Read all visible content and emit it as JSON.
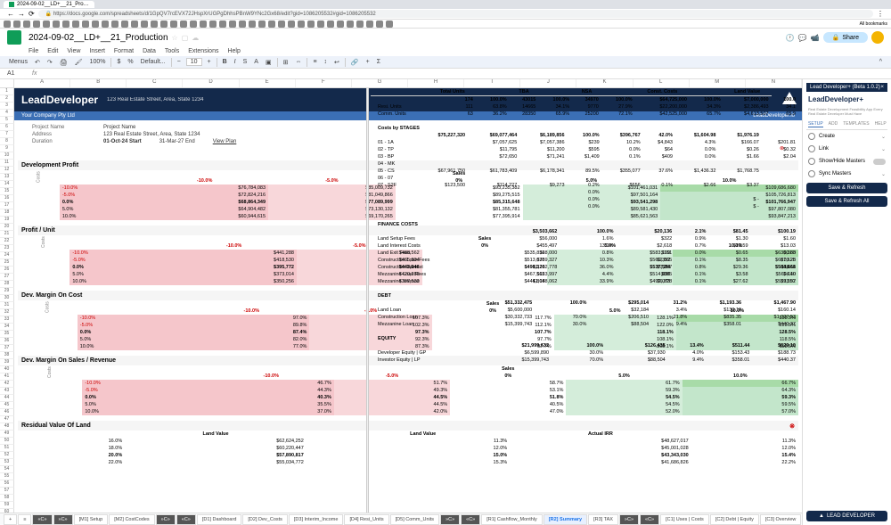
{
  "browser": {
    "tab_title": "2024-09-02__LD+__21_Pro…",
    "url": "https://docs.google.com/spreadsheets/d/1GpQV7rcEVX72JHspXrUGPgDhhsPBnW9YNc2Gx68/edit?gid=1086205532#gid=1086205532",
    "bookmarks_label": "All bookmarks"
  },
  "doc": {
    "title": "2024-09-02__LD+__21_Production",
    "menus": [
      "File",
      "Edit",
      "View",
      "Insert",
      "Format",
      "Data",
      "Tools",
      "Extensions",
      "Help"
    ],
    "share": "Share"
  },
  "toolbar": {
    "menus_btn": "Menus",
    "zoom": "100%",
    "currency": "$",
    "pct": "%",
    "font": "Default...",
    "font_size": "10"
  },
  "formula": {
    "cell": "A1"
  },
  "columns": [
    "A",
    "B",
    "C",
    "D",
    "E",
    "F",
    "G",
    "H",
    "I",
    "J",
    "K",
    "L",
    "M",
    "N"
  ],
  "ld": {
    "brand_lead": "Lead",
    "brand_dev": "Developer",
    "address": "123 Real Estate Street, Area, State 1234",
    "company": "Your Company Pty Ltd",
    "link": "LeadDeveloper.io"
  },
  "info": {
    "rows": [
      {
        "label": "Project Name",
        "val": "Project Name"
      },
      {
        "label": "Address",
        "val": "123 Real Estate Street, Area, State 1234"
      },
      {
        "label": "Duration",
        "val": "01-Oct-24 Start",
        "val2": "31-Mar-27 End",
        "val3": "View Plan"
      }
    ]
  },
  "dev_profit": {
    "title": "Development Profit",
    "sales_hdr": "Sales",
    "cols": [
      "",
      "-10.0%",
      "-5.0%",
      "0%",
      "5.0%",
      "10.0%"
    ],
    "rows": [
      [
        "-10.0%",
        "$76,784,083",
        "$85,009,732",
        "$93,235,382",
        "$101,461,031",
        "$109,686,680"
      ],
      [
        "-5.0%",
        "$72,824,216",
        "$81,049,866",
        "$89,275,515",
        "$97,501,164",
        "$105,726,813"
      ],
      [
        "0.0%",
        "$68,864,349",
        "$77,089,999",
        "$85,315,648",
        "$93,541,298",
        "$101,766,947"
      ],
      [
        "5.0%",
        "$64,904,482",
        "$73,130,132",
        "$81,355,781",
        "$89,581,430",
        "$97,807,080"
      ],
      [
        "10.0%",
        "$60,944,615",
        "$69,170,265",
        "$77,395,914",
        "$85,621,563",
        "$93,847,213"
      ]
    ]
  },
  "profit_unit": {
    "title": "Profit / Unit",
    "sales_hdr": "Sales",
    "cols": [
      "",
      "-10.0%",
      "-5.0%",
      "0%",
      "5.0%",
      "10.0%"
    ],
    "rows": [
      [
        "-10.0%",
        "$441,288",
        "$488,562",
        "$535,836",
        "$583,109",
        "$630,383"
      ],
      [
        "-5.0%",
        "$418,530",
        "$465,804",
        "$513,078",
        "$560,352",
        "$607,625"
      ],
      [
        "0.0%",
        "$395,772",
        "$443,046",
        "$490,320",
        "$537,594",
        "$584,868"
      ],
      [
        "5.0%",
        "$373,014",
        "$420,288",
        "$467,562",
        "$514,836",
        "$562,110"
      ],
      [
        "10.0%",
        "$350,256",
        "$397,530",
        "$444,804",
        "$492,078",
        "$539,352"
      ]
    ]
  },
  "margin_cost": {
    "title": "Dev. Margin On Cost",
    "sales_hdr": "Sales",
    "cols": [
      "",
      "-10.0%",
      "-5.0%",
      "0%",
      "5.0%",
      "10.0%"
    ],
    "rows": [
      [
        "-10.0%",
        "97.0%",
        "107.3%",
        "117.7%",
        "128.1%",
        "138.5%"
      ],
      [
        "-5.0%",
        "89.8%",
        "102.3%",
        "112.1%",
        "122.0%",
        "133.5%"
      ],
      [
        "0.0%",
        "87.4%",
        "97.3%",
        "107.7%",
        "118.1%",
        "128.5%"
      ],
      [
        "5.0%",
        "82.0%",
        "92.3%",
        "97.7%",
        "108.1%",
        "118.5%"
      ],
      [
        "10.0%",
        "77.0%",
        "87.3%",
        "97.7%",
        "108.1%",
        "118.5%"
      ]
    ]
  },
  "margin_sales": {
    "title": "Dev. Margin On Sales / Revenue",
    "sales_hdr": "Sales",
    "cols": [
      "",
      "-10.0%",
      "-5.0%",
      "0%",
      "5.0%",
      "10.0%"
    ],
    "rows": [
      [
        "-10.0%",
        "46.7%",
        "51.7%",
        "58.7%",
        "61.7%",
        "66.7%"
      ],
      [
        "-5.0%",
        "44.3%",
        "49.3%",
        "53.1%",
        "59.3%",
        "64.3%"
      ],
      [
        "0.0%",
        "40.3%",
        "44.5%",
        "51.8%",
        "54.5%",
        "59.3%"
      ],
      [
        "5.0%",
        "35.5%",
        "44.5%",
        "40.5%",
        "54.5%",
        "59.5%"
      ],
      [
        "10.0%",
        "37.0%",
        "42.0%",
        "47.0%",
        "52.0%",
        "57.0%"
      ]
    ]
  },
  "residual": {
    "title": "Residual Value Of Land",
    "hdrs": [
      "",
      "Land Value",
      "",
      "Land Value",
      "Actual IRR"
    ],
    "rows": [
      [
        "16.0%",
        "$62,624,252",
        "",
        "11.3%",
        "$48,627,017",
        "11.3%"
      ],
      [
        "18.0%",
        "$60,220,447",
        "",
        "12.0%",
        "$45,001,028",
        "12.0%"
      ],
      [
        "20.0%",
        "$57,890,817",
        "",
        "15.0%",
        "$43,343,030",
        "15.4%"
      ],
      [
        "22.0%",
        "$55,034,772",
        "",
        "15.3%",
        "$41,686,826",
        "22.2%"
      ]
    ]
  },
  "units_table": {
    "hdrs": [
      "",
      "Total Units",
      "",
      "TBA",
      "",
      "NSA",
      "",
      "Const. Costs",
      "",
      "Land Value"
    ],
    "rows": [
      [
        "",
        "174",
        "100.0%",
        "43015",
        "100.0%",
        "34970",
        "100.0%",
        "$64,725,000",
        "100.0%",
        "$7,000,000",
        "100.0"
      ],
      [
        "Resi. Units",
        "111",
        "63.8%",
        "14665",
        "34.1%",
        "9770",
        "27.9%",
        "$22,200,000",
        "34.3%",
        "$2,386,493",
        "34.1"
      ],
      [
        "Comm. Units",
        "63",
        "36.2%",
        "28350",
        "65.9%",
        "25200",
        "72.1%",
        "$42,525,000",
        "65.7%",
        "$4,613,507",
        "65.9"
      ]
    ]
  },
  "stages": {
    "title": "Costs by STAGES",
    "rows": [
      [
        "",
        "$75,227,320",
        "$69,077,464",
        "$6,189,856",
        "100.0%",
        "$396,767",
        "42.0%",
        "$1,604.98",
        "$1,976.19"
      ],
      [
        "01 - 1A",
        "",
        "$7,057,625",
        "$7,057,386",
        "$239",
        "10.2%",
        "$4,843",
        "4.3%",
        "$166.07",
        "$201.81"
      ],
      [
        "02 - TP",
        "",
        "$11,795",
        "$11,200",
        "$595",
        "0.0%",
        "$64",
        "0.0%",
        "$0.26",
        "$0.32"
      ],
      [
        "03 - BP",
        "",
        "$72,650",
        "$71,241",
        "$1,409",
        "0.1%",
        "$409",
        "0.0%",
        "$1.66",
        "$2.04"
      ],
      [
        "04 - MK",
        "",
        "",
        "",
        "",
        "",
        "",
        "",
        ""
      ],
      [
        "05 - CS",
        "$67,961,750",
        "$61,783,409",
        "$6,178,341",
        "89.5%",
        "$355,077",
        "37.6%",
        "$1,436.32",
        "$1,768.75"
      ],
      [
        "06 - 07",
        "",
        "",
        "",
        "",
        "",
        "",
        "",
        ""
      ],
      [
        "07 - S2F",
        "$123,500",
        "$114,227",
        "$9,273",
        "0.2%",
        "$656",
        "0.1%",
        "$2.66",
        "$3.37"
      ],
      [
        "",
        "",
        "",
        "",
        "0.0%",
        "",
        "",
        "",
        ""
      ],
      [
        "",
        "",
        "",
        "",
        "0.0%",
        "",
        "",
        "",
        "$ -"
      ],
      [
        "",
        "",
        "",
        "",
        "0.0%",
        "",
        "",
        "",
        "$ -"
      ]
    ]
  },
  "finance": {
    "title": "FINANCE COSTS",
    "rows": [
      [
        "",
        "$3,503,662",
        "",
        "100.0%",
        "",
        "$20,136",
        "2.1%",
        "$81.45",
        "$100.19"
      ],
      [
        "Land Setup Fees",
        "$56,000",
        "",
        "1.6%",
        "",
        "$322",
        "0.9%",
        "$1.30",
        "$1.60"
      ],
      [
        "Land Interest Costs",
        "$455,497",
        "",
        "13.0%",
        "",
        "$2,618",
        "0.7%",
        "$10.59",
        "$13.03"
      ],
      [
        "Land Exit Fees",
        "$28,000",
        "",
        "0.8%",
        "",
        "$161",
        "0.0%",
        "$0.65",
        "$0.80"
      ],
      [
        "Construction Loan Fees",
        "$359,327",
        "",
        "10.3%",
        "",
        "$2,065",
        "0.1%",
        "$8.35",
        "$10.28"
      ],
      [
        "Construction Interest",
        "$1,262,778",
        "",
        "36.0%",
        "",
        "$7,257",
        "0.8%",
        "$29.36",
        "$36.11"
      ],
      [
        "Mezzanine Loan Fees",
        "$153,997",
        "",
        "4.4%",
        "",
        "$885",
        "0.1%",
        "$3.58",
        "$4.40"
      ],
      [
        "Mezzanine Interest",
        "$1,188,062",
        "",
        "33.9%",
        "",
        "$6,828",
        "0.1%",
        "$27.62",
        "$33.97"
      ]
    ]
  },
  "debt": {
    "title": "DEBT",
    "rows": [
      [
        "",
        "$51,332,475",
        "",
        "100.0%",
        "",
        "$295,014",
        "31.2%",
        "$1,193.36",
        "$1,467.90"
      ],
      [
        "Land Loan",
        "$5,600,000",
        "",
        "",
        "",
        "$32,184",
        "3.4%",
        "$130.19",
        "$160.14"
      ],
      [
        "Construction Loan",
        "$30,332,733",
        "",
        "70.0%",
        "",
        "$206,510",
        "21.8%",
        "$835.35",
        "$1,027.53"
      ],
      [
        "Mezzanine Loan",
        "$15,399,743",
        "",
        "30.0%",
        "",
        "$88,504",
        "9.4%",
        "$358.01",
        "$440.37"
      ]
    ]
  },
  "equity": {
    "title": "EQUITY",
    "rows": [
      [
        "",
        "$21,999,632",
        "",
        "100.0%",
        "",
        "$126,435",
        "13.4%",
        "$511.44",
        "$629.10"
      ],
      [
        "Developer Equity | GP",
        "$6,599,890",
        "",
        "30.0%",
        "",
        "$37,930",
        "4.0%",
        "$153.43",
        "$188.73"
      ],
      [
        "Investor Equity | LP",
        "$15,399,743",
        "",
        "70.0%",
        "",
        "$88,504",
        "9.4%",
        "$358.01",
        "$440.37"
      ]
    ]
  },
  "sidebar": {
    "panel_title": "Lead Developer+ (Beta 1.0.2)",
    "logo": "LeadDeveloper+",
    "sub": "Real Estate Development Feasibility App Every Real Estate Developer Must Have",
    "tabs": [
      "SETUP",
      "ADD",
      "TEMPLATES",
      "HELP"
    ],
    "items": [
      {
        "icon": "plus",
        "label": "Create"
      },
      {
        "icon": "link",
        "label": "Link"
      },
      {
        "icon": "eye",
        "label": "Show/Hide Masters",
        "toggle": true
      },
      {
        "icon": "sync",
        "label": "Sync Masters"
      }
    ],
    "btn1": "Save & Refresh",
    "btn2": "Save & Refresh All",
    "footer_btn": "LEAD DEVELOPER"
  },
  "sheet_tabs": [
    "+",
    "≡",
    "«C»",
    "»C»",
    "[M1] Setup",
    "[M2] CostCodes",
    "»C»",
    "«C»",
    "[D1] Dashboard",
    "[D2] Dev_Costs",
    "[D3] Interim_Income",
    "[D4] Resi_Units",
    "[D5] Comm_Units",
    "»C»",
    "«C»",
    "[R1] Cashflow_Monthly",
    "[R2] Summary",
    "[R3] TAX",
    "»C»",
    "«C»",
    "[C1] Uses | Costs",
    "[C2] Debt | Equity",
    "[C3] Overview",
    "[C4] Project Costs",
    "Charts",
    "»"
  ]
}
